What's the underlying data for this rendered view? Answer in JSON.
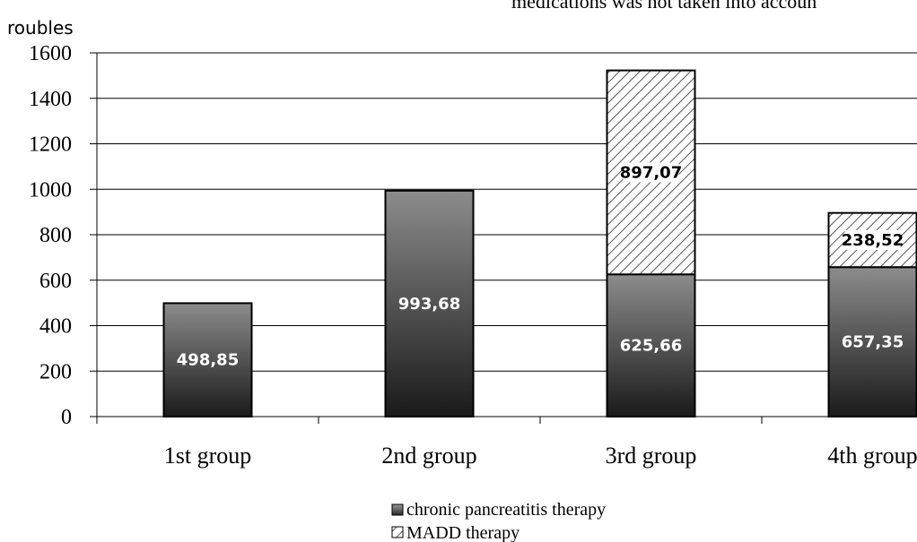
{
  "chart_data": {
    "type": "bar",
    "stacked": true,
    "title": "medications was not taken into accoun",
    "ylabel": "roubles",
    "xlabel": "",
    "ylim": [
      0,
      1600
    ],
    "yticks": [
      0,
      200,
      400,
      600,
      800,
      1000,
      1200,
      1400,
      1600
    ],
    "categories": [
      "1st group",
      "2nd group",
      "3rd group",
      "4th group"
    ],
    "series": [
      {
        "name": "chronic pancreatitis therapy",
        "values": [
          498.85,
          993.68,
          625.66,
          657.35
        ],
        "labels": [
          "498,85",
          "993,68",
          "625,66",
          "657,35"
        ],
        "fill": "dark-gradient"
      },
      {
        "name": "MADD therapy",
        "values": [
          0,
          0,
          897.07,
          238.52
        ],
        "labels": [
          "",
          "",
          "897,07",
          "238,52"
        ],
        "fill": "diagonal-hatch"
      }
    ],
    "grid": true,
    "legend_position": "bottom-center",
    "colors": {
      "bar_dark_top": "#8c8c8c",
      "bar_dark_bottom": "#1a1a1a",
      "hatch_line": "#555555",
      "grid": "#000000"
    }
  }
}
